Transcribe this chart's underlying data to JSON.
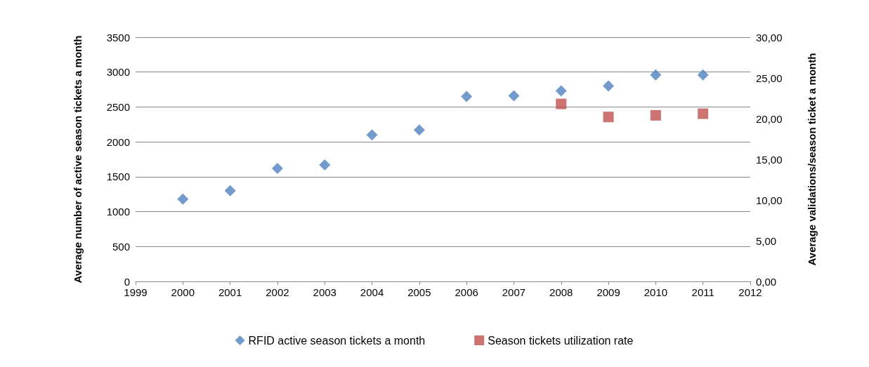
{
  "chart_data": {
    "type": "scatter",
    "ylabel": "Average number of active season tickets a month",
    "y2label": "Average validations/season ticket a month",
    "x": [
      2000,
      2001,
      2002,
      2003,
      2004,
      2005,
      2006,
      2007,
      2008,
      2009,
      2010,
      2011
    ],
    "xlim": [
      1999,
      2012
    ],
    "xticks": [
      1999,
      2000,
      2001,
      2002,
      2003,
      2004,
      2005,
      2006,
      2007,
      2008,
      2009,
      2010,
      2011,
      2012
    ],
    "ylim": [
      0,
      3500
    ],
    "yticks": [
      0,
      500,
      1000,
      1500,
      2000,
      2500,
      3000,
      3500
    ],
    "y2lim": [
      0,
      30
    ],
    "y2ticks": [
      {
        "value": 0,
        "label": "0,00"
      },
      {
        "value": 5,
        "label": "5,00"
      },
      {
        "value": 10,
        "label": "10,00"
      },
      {
        "value": 15,
        "label": "15,00"
      },
      {
        "value": 20,
        "label": "20,00"
      },
      {
        "value": 25,
        "label": "25,00"
      },
      {
        "value": 30,
        "label": "30,00"
      }
    ],
    "series": [
      {
        "name": "RFID active season tickets a month",
        "color": "#4f81bd",
        "marker": "diamond",
        "values": [
          1180,
          1300,
          1620,
          1670,
          2100,
          2170,
          2650,
          2660,
          2730,
          2800,
          2960,
          2960
        ]
      },
      {
        "name": "Season tickets utilization rate",
        "color": "#c0504d",
        "marker": "square",
        "axis": "y2",
        "values": [
          null,
          null,
          null,
          null,
          null,
          null,
          null,
          null,
          21.8,
          20.2,
          20.4,
          20.6
        ]
      }
    ],
    "grid": "y",
    "legend": "bottom"
  }
}
